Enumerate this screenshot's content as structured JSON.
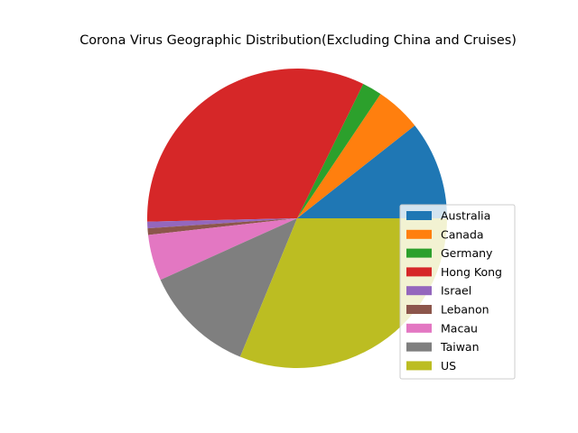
{
  "chart_data": {
    "type": "pie",
    "title": "Corona Virus Geographic Distribution(Excluding China and Cruises)",
    "start_angle": 0,
    "direction": "counterclockwise",
    "legend_position": "lower-right",
    "slices": [
      {
        "label": "Australia",
        "value": 15,
        "color": "#1f77b4"
      },
      {
        "label": "Canada",
        "value": 7,
        "color": "#ff7f0e"
      },
      {
        "label": "Germany",
        "value": 3,
        "color": "#2ca02c"
      },
      {
        "label": "Hong Kong",
        "value": 46,
        "color": "#d62728"
      },
      {
        "label": "Israel",
        "value": 1,
        "color": "#9467bd"
      },
      {
        "label": "Lebanon",
        "value": 1,
        "color": "#8c564b"
      },
      {
        "label": "Macau",
        "value": 7,
        "color": "#e377c2"
      },
      {
        "label": "Taiwan",
        "value": 17,
        "color": "#7f7f7f"
      },
      {
        "label": "US",
        "value": 44,
        "color": "#bcbd22"
      }
    ]
  }
}
